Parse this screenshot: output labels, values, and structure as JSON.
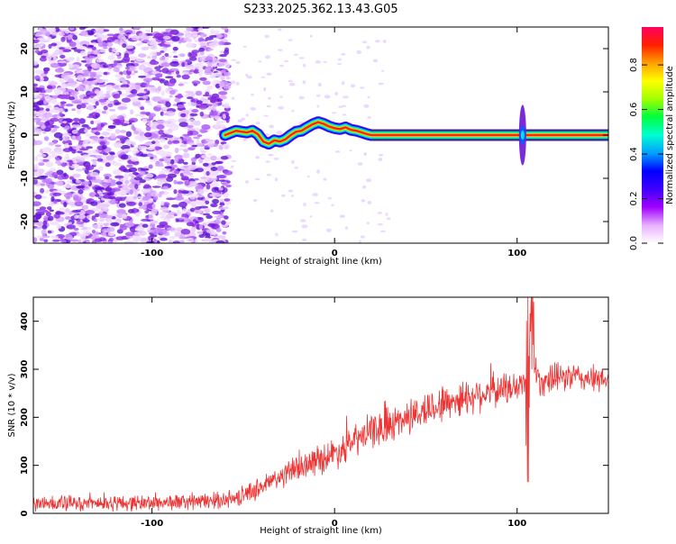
{
  "title": "S233.2025.362.13.43.G05",
  "chart_data": [
    {
      "type": "heatmap",
      "xlabel": "Height of straight line (km)",
      "ylabel": "Frequency (Hz)",
      "xlim": [
        -165,
        150
      ],
      "ylim": [
        -25,
        25
      ],
      "x_ticks": [
        -100,
        0,
        100
      ],
      "y_ticks": [
        -20,
        -10,
        0,
        10,
        20
      ],
      "noise_region_x": [
        -165,
        -60
      ],
      "ridge": {
        "x": [
          -60,
          -57,
          -54,
          -51,
          -48,
          -45,
          -42,
          -39,
          -36,
          -33,
          -30,
          -27,
          -24,
          -21,
          -18,
          -15,
          -12,
          -9,
          -6,
          -3,
          0,
          3,
          6,
          9,
          12,
          15,
          18,
          20,
          150
        ],
        "y": [
          0,
          0.5,
          1,
          0.8,
          0.6,
          1,
          0.2,
          -1.5,
          -2.0,
          -1.2,
          -1.5,
          -1.0,
          0,
          0.8,
          1.0,
          1.8,
          2.5,
          3.0,
          2.6,
          2.0,
          1.6,
          1.4,
          1.8,
          1.2,
          1.0,
          0.6,
          0.2,
          0,
          0
        ]
      },
      "spike": {
        "x": 103,
        "y_range": [
          -7,
          7
        ]
      },
      "colorbar": {
        "label": "Normalized spectral amplitude",
        "ticks": [
          0.0,
          0.2,
          0.4,
          0.6,
          0.8
        ],
        "tick_labels": [
          "0.0",
          "0.2",
          "0.4",
          "0.6",
          "0.8"
        ],
        "range": [
          0,
          0.97
        ],
        "colors": [
          "#ffffff",
          "#e8b0ff",
          "#a000ff",
          "#4000ff",
          "#0000ff",
          "#00a0ff",
          "#00ffd0",
          "#00ff40",
          "#a0ff00",
          "#ffff00",
          "#ffa000",
          "#ff2000",
          "#ff0060"
        ]
      }
    },
    {
      "type": "line",
      "xlabel": "Height of straight line (km)",
      "ylabel": "SNR (10 * v/v)",
      "xlim": [
        -165,
        150
      ],
      "ylim": [
        0,
        450
      ],
      "x_ticks": [
        -100,
        0,
        100
      ],
      "y_ticks": [
        0,
        100,
        200,
        300,
        400
      ],
      "color": "#ee3333",
      "trend_x": [
        -165,
        -100,
        -70,
        -55,
        -40,
        -20,
        0,
        20,
        40,
        60,
        80,
        95,
        105,
        108,
        112,
        120,
        130,
        140,
        150
      ],
      "trend_y": [
        20,
        22,
        25,
        30,
        55,
        95,
        125,
        170,
        200,
        230,
        250,
        260,
        270,
        340,
        275,
        280,
        285,
        280,
        275
      ],
      "noise_amp_x": [
        -165,
        -60,
        0,
        60,
        150
      ],
      "noise_amp_y": [
        25,
        25,
        50,
        60,
        40
      ],
      "features": [
        {
          "x": 28,
          "y_min": 150,
          "y_max": 235
        },
        {
          "x": 106,
          "y_min": 65,
          "y_max": 450
        },
        {
          "x": 108,
          "y_min": 300,
          "y_max": 450
        }
      ]
    }
  ]
}
